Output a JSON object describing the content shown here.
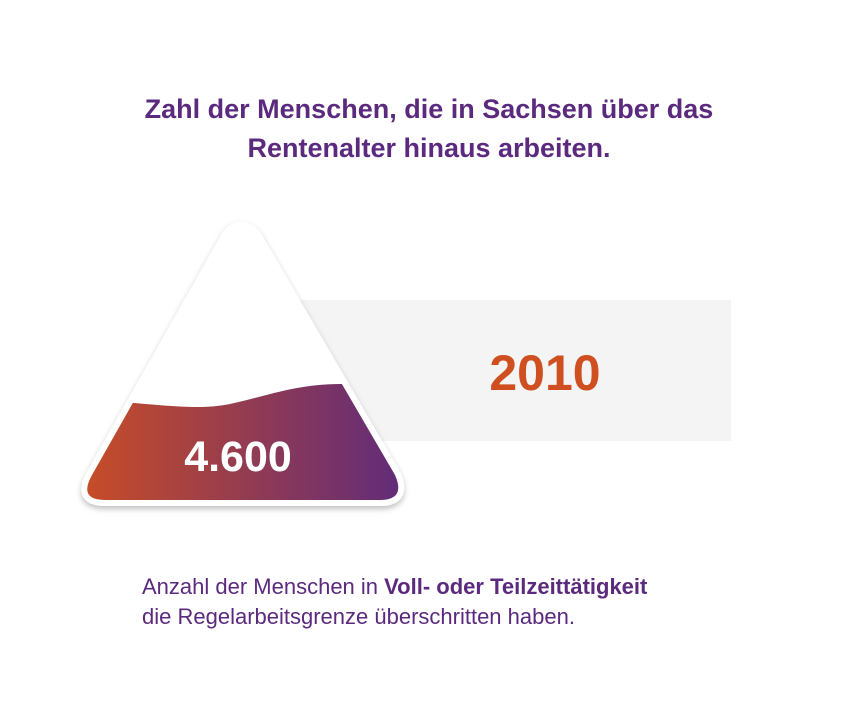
{
  "title": {
    "line1": "Zahl der Menschen, die in Sachsen über das",
    "line2": "Rentenalter hinaus arbeiten."
  },
  "highlight": {
    "year": "2010",
    "count": "4.600"
  },
  "description": {
    "part1": "Anzahl der Menschen in ",
    "emphasis": "Voll- oder Teilzeittätigkeit",
    "line2": "die Regelarbeitsgrenze überschritten haben."
  },
  "colors": {
    "purple": "#5b2a7e",
    "orange": "#cf4f21",
    "panel": "#f4f4f4"
  }
}
